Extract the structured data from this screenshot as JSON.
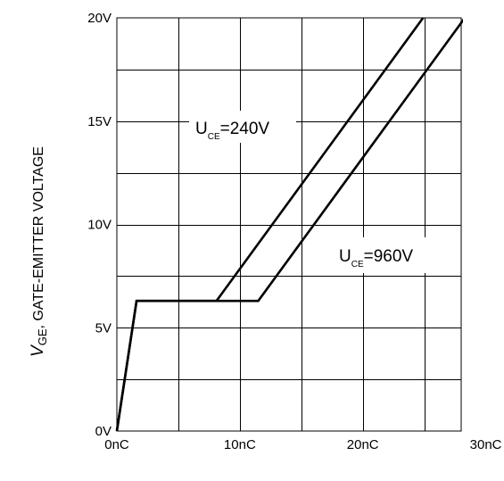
{
  "chart_data": {
    "type": "line",
    "title": "",
    "xlabel": "",
    "ylabel": {
      "symbol": "V",
      "subscript": "GE",
      "text": ", GATE-EMITTER VOLTAGE"
    },
    "xlim": [
      0,
      28
    ],
    "ylim": [
      0,
      20
    ],
    "x_ticks": [
      0,
      10,
      20,
      30
    ],
    "x_tick_labels": [
      "0nC",
      "10nC",
      "20nC",
      "30nC"
    ],
    "y_ticks": [
      0,
      5,
      10,
      15,
      20
    ],
    "y_tick_labels": [
      "0V",
      "5V",
      "10V",
      "15V",
      "20V"
    ],
    "grid": true,
    "legend": "none",
    "series": [
      {
        "name": "U_CE=240V",
        "x": [
          0,
          1.6,
          8.1,
          24.9
        ],
        "y": [
          0,
          6.3,
          6.3,
          20
        ]
      },
      {
        "name": "U_CE=960V",
        "x": [
          0,
          1.6,
          11.5,
          28.3
        ],
        "y": [
          0,
          6.3,
          6.3,
          20
        ]
      }
    ],
    "annotations": [
      {
        "main": "U",
        "sub": "CE",
        "rest": "=240V"
      },
      {
        "main": "U",
        "sub": "CE",
        "rest": "=960V"
      }
    ]
  }
}
